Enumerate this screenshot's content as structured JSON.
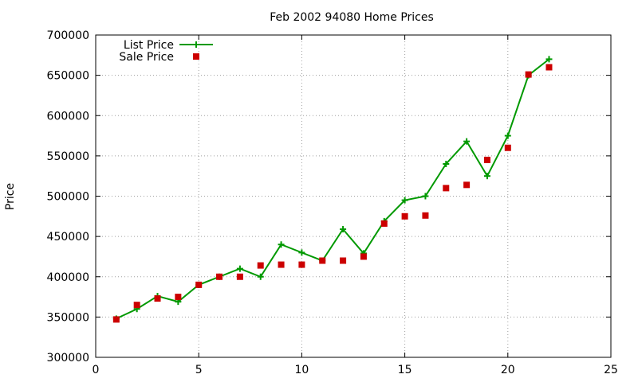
{
  "chart_data": {
    "type": "line",
    "title": "Feb 2002 94080 Home Prices",
    "xlabel": "",
    "ylabel": "Price",
    "xlim": [
      0,
      25
    ],
    "ylim": [
      300000,
      700000
    ],
    "x_ticks": [
      0,
      5,
      10,
      15,
      20,
      25
    ],
    "y_ticks": [
      300000,
      350000,
      400000,
      450000,
      500000,
      550000,
      600000,
      650000,
      700000
    ],
    "grid": true,
    "legend_position": "top-left",
    "series": [
      {
        "name": "List Price",
        "style": "linespoints",
        "color": "#009900",
        "marker": "plus",
        "x": [
          1,
          2,
          3,
          4,
          5,
          6,
          7,
          8,
          9,
          10,
          11,
          12,
          13,
          14,
          15,
          16,
          17,
          18,
          19,
          20,
          21,
          22
        ],
        "y": [
          348000,
          360000,
          376000,
          369000,
          390000,
          400000,
          410000,
          400000,
          440000,
          430000,
          420000,
          459000,
          429000,
          469000,
          495000,
          500000,
          540000,
          568000,
          525000,
          575000,
          650000,
          670000
        ]
      },
      {
        "name": "Sale Price",
        "style": "points",
        "color": "#cc0000",
        "marker": "square",
        "x": [
          1,
          2,
          3,
          4,
          5,
          6,
          7,
          8,
          9,
          10,
          11,
          12,
          13,
          14,
          15,
          16,
          17,
          18,
          19,
          20,
          21,
          22
        ],
        "y": [
          347000,
          365000,
          373000,
          375000,
          390000,
          400000,
          400000,
          414000,
          415000,
          415000,
          420000,
          420000,
          425000,
          466000,
          475000,
          476000,
          510000,
          514000,
          545000,
          560000,
          651000,
          660000
        ]
      }
    ]
  }
}
